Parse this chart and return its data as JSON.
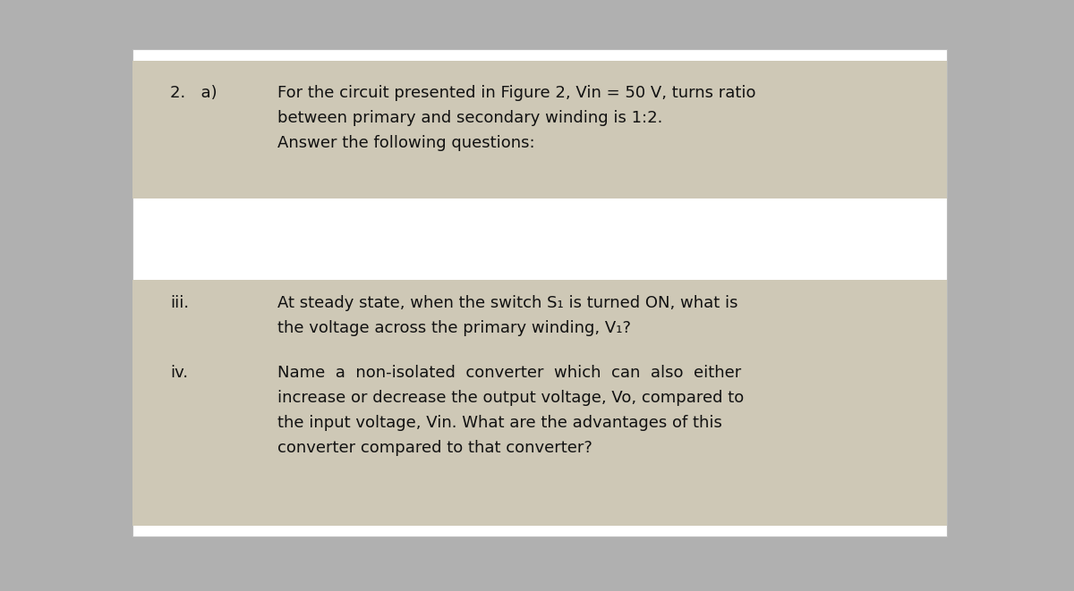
{
  "bg_color": "#b0b0b0",
  "paper_color": "#ffffff",
  "box_color": "#cec8b6",
  "font_size": 13,
  "label_font_size": 13,
  "top_box": {
    "label": "2.   a)",
    "line1": "For the circuit presented in Figure 2, Vin = 50 V, turns ratio",
    "line2": "between primary and secondary winding is 1:2.",
    "line3": "Answer the following questions:"
  },
  "bottom_box": {
    "iii_label": "iii.",
    "iii_line1": "At steady state, when the switch S₁ is turned ON, what is",
    "iii_line2": "the voltage across the primary winding, V₁?",
    "iv_label": "iv.",
    "iv_line1": "Name  a  non-isolated  converter  which  can  also  either",
    "iv_line2": "increase or decrease the output voltage, Vo, compared to",
    "iv_line3": "the input voltage, Vin. What are the advantages of this",
    "iv_line4": "converter compared to that converter?"
  }
}
